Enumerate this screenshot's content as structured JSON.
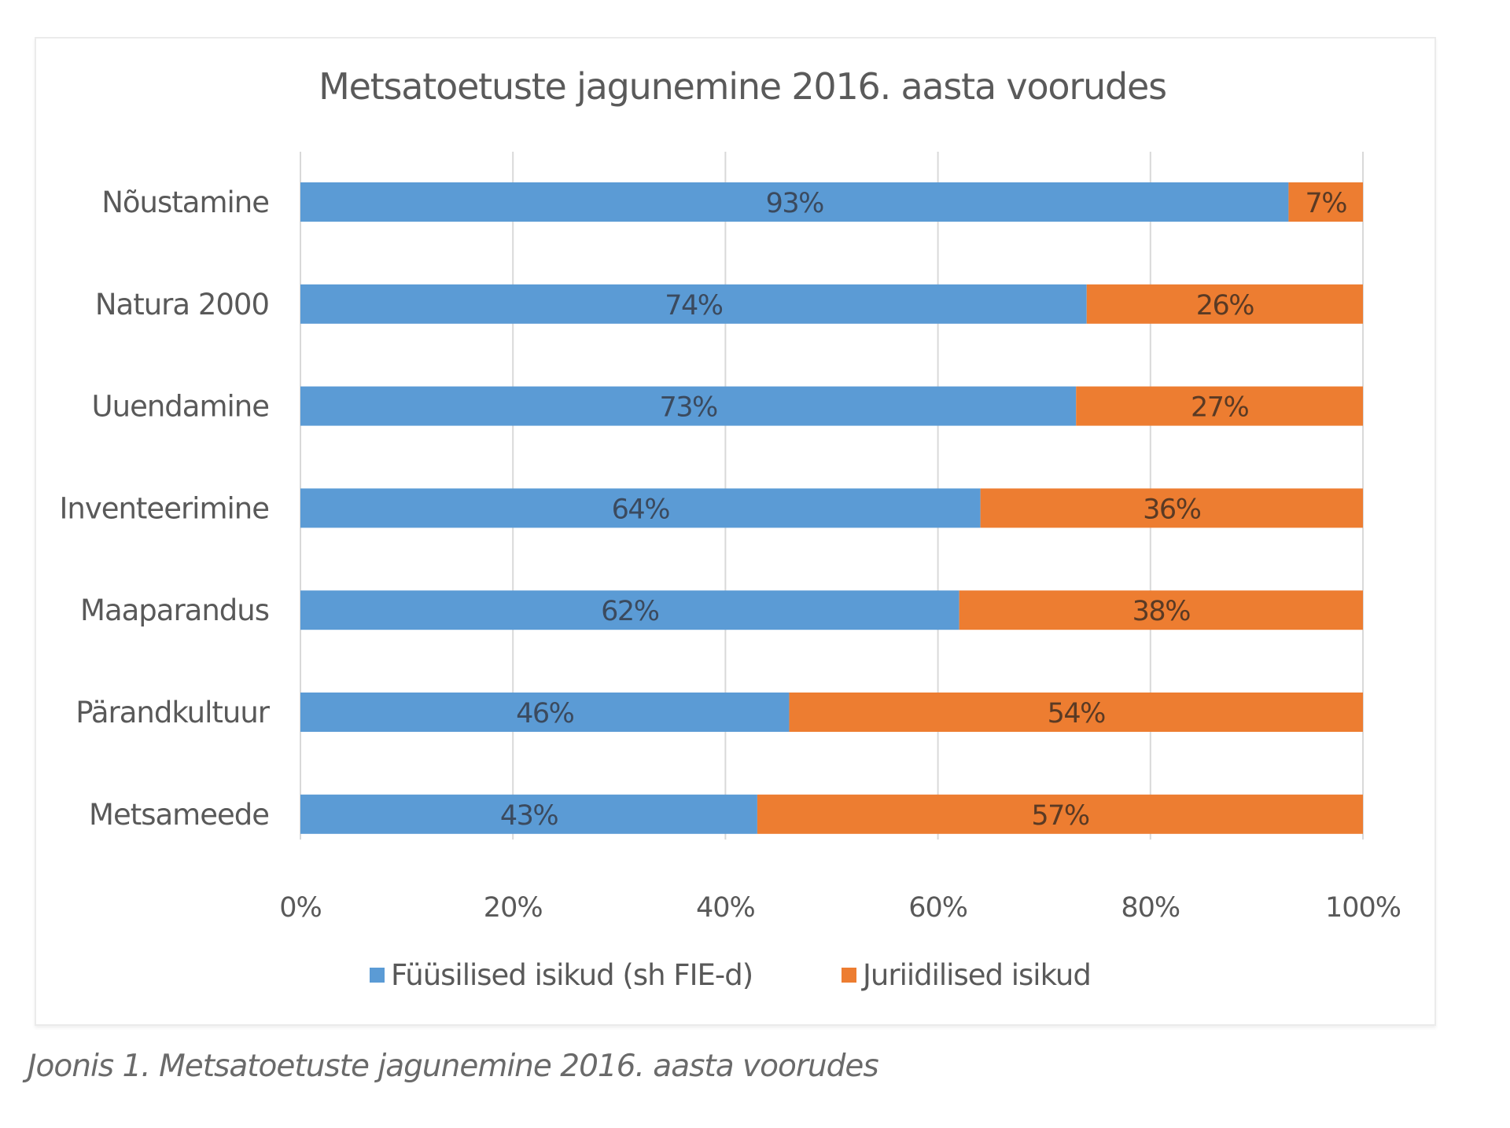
{
  "caption": "Joonis 1. Metsatoetuste jagunemine 2016. aasta voorudes",
  "colors": {
    "series_1": "#5b9bd5",
    "series_2": "#ed7d31",
    "label_on_series_1": "#3b4a5e",
    "label_on_series_2": "#5a3a24",
    "gridline": "#d9d9d9"
  },
  "chart_data": {
    "type": "bar",
    "orientation": "horizontal",
    "stacked": "100%",
    "title": "Metsatoetuste jagunemine 2016. aasta voorudes",
    "xlabel": "",
    "ylabel": "",
    "categories": [
      "Nõustamine",
      "Natura 2000",
      "Uuendamine",
      "Inventeerimine",
      "Maaparandus",
      "Pärandkultuur",
      "Metsameede"
    ],
    "series": [
      {
        "name": "Füüsilised isikud (sh FIE-d)",
        "values": [
          93,
          74,
          73,
          64,
          62,
          46,
          43
        ],
        "labels": [
          "93%",
          "74%",
          "73%",
          "64%",
          "62%",
          "46%",
          "43%"
        ]
      },
      {
        "name": "Juriidilised isikud",
        "values": [
          7,
          26,
          27,
          36,
          38,
          54,
          57
        ],
        "labels": [
          "7%",
          "26%",
          "27%",
          "36%",
          "38%",
          "54%",
          "57%"
        ]
      }
    ],
    "xlim": [
      0,
      100
    ],
    "xticks": [
      0,
      20,
      40,
      60,
      80,
      100
    ],
    "xtick_labels": [
      "0%",
      "20%",
      "40%",
      "60%",
      "80%",
      "100%"
    ],
    "grid": "vertical",
    "legend": "bottom-center"
  }
}
